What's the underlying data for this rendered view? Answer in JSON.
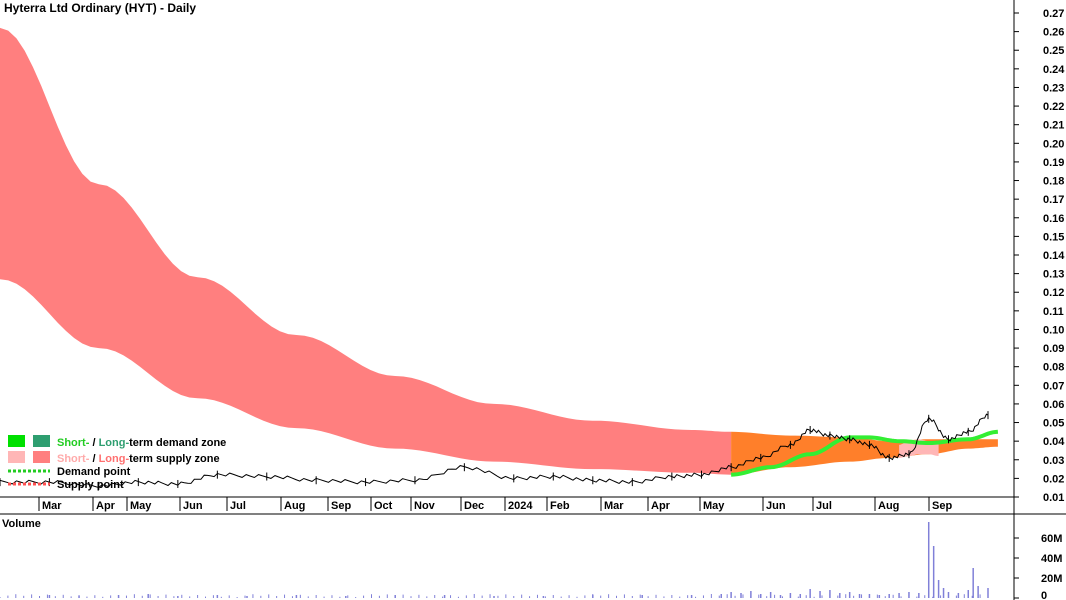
{
  "chart_data": {
    "type": "line",
    "title": "Hyterra Ltd Ordinary (HYT) - Daily",
    "x_tick_labels": [
      "Mar",
      "Apr",
      "May",
      "Jun",
      "Jul",
      "Aug",
      "Sep",
      "Oct",
      "Nov",
      "Dec",
      "2024",
      "Feb",
      "Mar",
      "Apr",
      "May",
      "Jun",
      "Jul",
      "Aug",
      "Sep"
    ],
    "y_ticks": [
      0.01,
      0.02,
      0.03,
      0.04,
      0.05,
      0.06,
      0.07,
      0.08,
      0.09,
      0.1,
      0.11,
      0.12,
      0.13,
      0.14,
      0.15,
      0.16,
      0.17,
      0.18,
      0.19,
      0.2,
      0.21,
      0.22,
      0.23,
      0.24,
      0.25,
      0.26,
      0.27
    ],
    "y_tick_labels": [
      "0.01",
      "0.02",
      "0.03",
      "0.04",
      "0.05",
      "0.06",
      "0.07",
      "0.08",
      "0.09",
      "0.10",
      "0.11",
      "0.12",
      "0.13",
      "0.14",
      "0.15",
      "0.16",
      "0.17",
      "0.18",
      "0.19",
      "0.20",
      "0.21",
      "0.22",
      "0.23",
      "0.24",
      "0.25",
      "0.26",
      "0.27"
    ],
    "ylim": [
      0.005,
      0.275
    ],
    "x_index_range": [
      0,
      100
    ],
    "price": {
      "x": [
        0,
        5,
        10,
        14,
        18,
        22,
        27,
        32,
        37,
        42,
        47,
        52,
        56,
        60,
        64,
        68,
        71,
        74,
        77,
        80,
        82,
        84,
        86,
        88,
        90,
        92,
        94,
        96,
        98,
        100
      ],
      "y": [
        0.018,
        0.018,
        0.016,
        0.018,
        0.017,
        0.022,
        0.021,
        0.019,
        0.018,
        0.019,
        0.026,
        0.02,
        0.021,
        0.019,
        0.018,
        0.021,
        0.022,
        0.026,
        0.031,
        0.038,
        0.046,
        0.043,
        0.041,
        0.038,
        0.031,
        0.033,
        0.052,
        0.041,
        0.045,
        0.054
      ]
    },
    "supply_zone_long": {
      "x": [
        0,
        10,
        20,
        30,
        40,
        50,
        60,
        70,
        74
      ],
      "upper": [
        0.262,
        0.178,
        0.128,
        0.097,
        0.075,
        0.06,
        0.051,
        0.046,
        0.045
      ],
      "lower": [
        0.127,
        0.09,
        0.063,
        0.047,
        0.036,
        0.029,
        0.025,
        0.023,
        0.022
      ]
    },
    "supply_zone_short": {
      "x": [
        74,
        80,
        86,
        90,
        94,
        98,
        101
      ],
      "upper": [
        0.045,
        0.043,
        0.042,
        0.04,
        0.041,
        0.041,
        0.041
      ],
      "lower": [
        0.022,
        0.026,
        0.029,
        0.031,
        0.033,
        0.036,
        0.037
      ]
    },
    "supply_zone_pink": {
      "x": [
        91,
        92,
        93,
        94,
        95
      ],
      "upper": [
        0.038,
        0.04,
        0.041,
        0.04,
        0.039
      ],
      "lower": [
        0.031,
        0.032,
        0.033,
        0.033,
        0.032
      ]
    },
    "demand_line": {
      "x": [
        74,
        78,
        82,
        86,
        88,
        91,
        94,
        98,
        101
      ],
      "y": [
        0.022,
        0.026,
        0.033,
        0.042,
        0.042,
        0.04,
        0.039,
        0.041,
        0.045
      ]
    },
    "legend": {
      "demand": {
        "short": "Short-",
        "sep": " / ",
        "long": "Long-",
        "rest": "term demand zone"
      },
      "supply": {
        "short": "Short-",
        "sep": " / ",
        "long": "Long-",
        "rest": "term supply zone"
      },
      "demand_point": "Demand point",
      "supply_point": "Supply point"
    },
    "volume": {
      "label": "Volume",
      "y_ticks": [
        0,
        20,
        40,
        60
      ],
      "y_tick_labels": [
        "0",
        "20M",
        "40M",
        "60M"
      ],
      "ylim": [
        0,
        80
      ],
      "bars": [
        [
          5,
          3
        ],
        [
          8,
          2
        ],
        [
          12,
          3
        ],
        [
          15,
          4
        ],
        [
          18,
          2
        ],
        [
          22,
          3
        ],
        [
          25,
          2
        ],
        [
          30,
          3
        ],
        [
          35,
          2
        ],
        [
          40,
          3
        ],
        [
          45,
          3
        ],
        [
          50,
          2
        ],
        [
          55,
          2
        ],
        [
          60,
          3
        ],
        [
          65,
          3
        ],
        [
          70,
          3
        ],
        [
          73,
          4
        ],
        [
          74,
          6
        ],
        [
          75,
          5
        ],
        [
          76,
          7
        ],
        [
          77,
          4
        ],
        [
          78,
          6
        ],
        [
          79,
          3
        ],
        [
          80,
          5
        ],
        [
          81,
          4
        ],
        [
          82,
          9
        ],
        [
          83,
          7
        ],
        [
          84,
          8
        ],
        [
          85,
          5
        ],
        [
          86,
          6
        ],
        [
          87,
          4
        ],
        [
          88,
          4
        ],
        [
          89,
          3
        ],
        [
          90,
          4
        ],
        [
          91,
          5
        ],
        [
          92,
          6
        ],
        [
          93,
          5
        ],
        [
          94,
          76
        ],
        [
          94.5,
          52
        ],
        [
          95,
          18
        ],
        [
          95.5,
          10
        ],
        [
          96,
          6
        ],
        [
          97,
          5
        ],
        [
          98,
          8
        ],
        [
          98.5,
          30
        ],
        [
          99,
          12
        ],
        [
          100,
          10
        ]
      ]
    },
    "colors": {
      "long_supply": "#ff7f7f",
      "short_supply": "#ff7f2a",
      "pink_supply": "#ffb6b6",
      "demand_short": "#00e000",
      "demand_long": "#2e9e70",
      "demand_line": "#33ee33",
      "volume_bar": "#8080d8",
      "volume_label": "#7700aa"
    }
  }
}
